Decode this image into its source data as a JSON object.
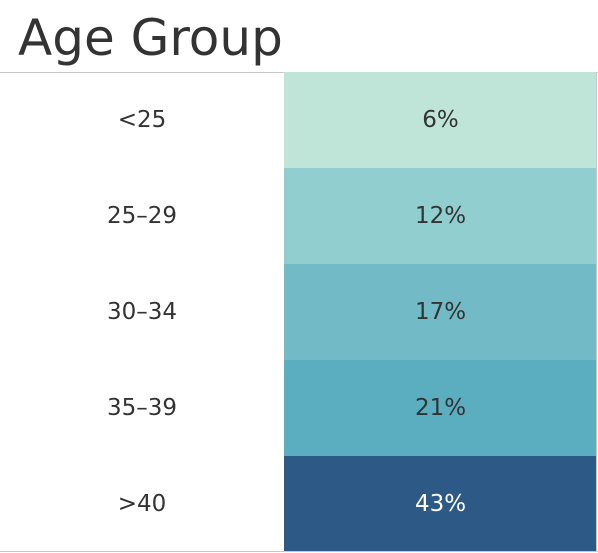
{
  "chart_data": {
    "type": "heatmap",
    "title": "Age Group",
    "categories": [
      "<25",
      "25–29",
      "30–34",
      "35–39",
      ">40"
    ],
    "values": [
      6,
      12,
      17,
      21,
      43
    ],
    "value_labels": [
      "6%",
      "12%",
      "17%",
      "21%",
      "43%"
    ],
    "unit": "%",
    "colors": [
      "#bfe5d9",
      "#91ced0",
      "#72bbc6",
      "#5aaec0",
      "#2d5986"
    ],
    "text_colors": [
      "#333333",
      "#333333",
      "#333333",
      "#333333",
      "#ffffff"
    ],
    "grid": false
  }
}
